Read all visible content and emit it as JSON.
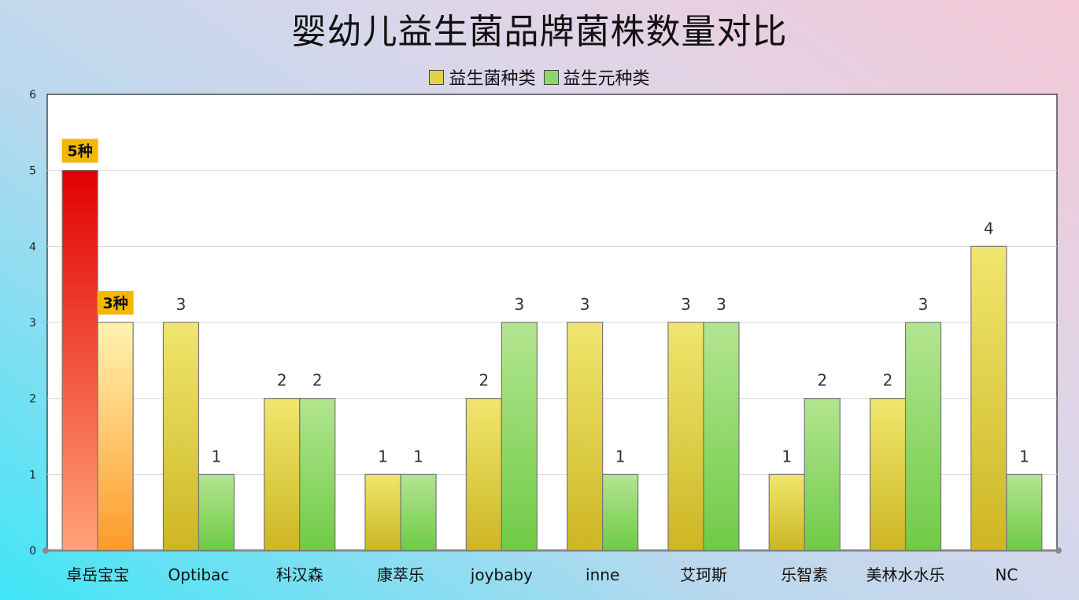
{
  "chart_data": {
    "type": "bar",
    "title": "婴幼儿益生菌品牌菌株数量对比",
    "categories": [
      "卓岳宝宝",
      "Optibac",
      "科汉森",
      "康萃乐",
      "joybaby",
      "inne",
      "艾珂斯",
      "乐智素",
      "美林水水乐",
      "NC"
    ],
    "series": [
      {
        "name": "益生菌种类",
        "values": [
          5,
          3,
          2,
          1,
          2,
          3,
          3,
          1,
          2,
          4
        ],
        "color": "#e2d24a"
      },
      {
        "name": "益生元种类",
        "values": [
          3,
          1,
          2,
          1,
          3,
          1,
          3,
          2,
          3,
          1
        ],
        "color": "#8fd66a"
      }
    ],
    "ylim": [
      0,
      6
    ],
    "yticks": [
      "0",
      "1",
      "2",
      "3",
      "4",
      "5",
      "6"
    ],
    "grid": true,
    "legend_position": "top-center",
    "highlight": {
      "category": "卓岳宝宝",
      "labels": [
        "5种",
        "3种"
      ],
      "label_bg": "#f5b800",
      "series1_colors": [
        "#e00000",
        "#ffa37a"
      ],
      "series2_colors": [
        "#fff3b0",
        "#ff9a2a"
      ]
    }
  }
}
